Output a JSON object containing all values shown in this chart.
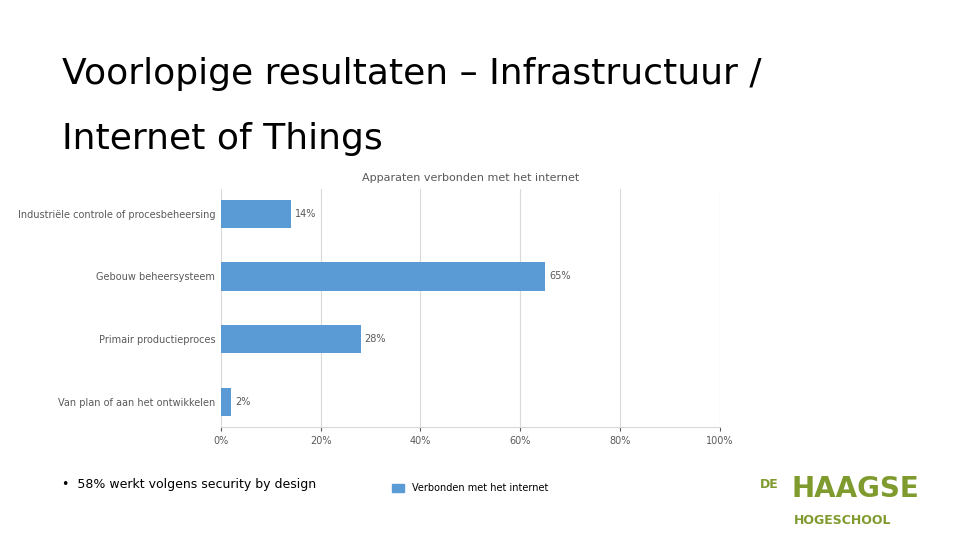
{
  "title_line1": "Voorlopige resultaten – Infrastructuur /",
  "title_line2": "Internet of Things",
  "chart_title": "Apparaten verbonden met het internet",
  "categories": [
    "Industriële controle of procesbeheersing",
    "Gebouw beheersysteem",
    "Primair productieproces",
    "Van plan of aan het ontwikkelen"
  ],
  "values": [
    14,
    65,
    28,
    2
  ],
  "bar_color": "#5B9BD5",
  "legend_label": "Verbonden met het internet",
  "legend_color": "#5B9BD5",
  "bullet_text": "58% werkt volgens security by design",
  "bg_color": "#FFFFFF",
  "title_color": "#000000",
  "chart_title_color": "#595959",
  "label_color": "#595959",
  "tick_color": "#595959",
  "grid_color": "#D9D9D9",
  "xlim": [
    0,
    100
  ],
  "xticks": [
    0,
    20,
    40,
    60,
    80,
    100
  ],
  "xtick_labels": [
    "0%",
    "20%",
    "40%",
    "60%",
    "80%",
    "100%"
  ],
  "haagse_color": "#7F9B2E",
  "title_fontsize": 26,
  "chart_title_fontsize": 8,
  "bar_label_fontsize": 7,
  "tick_fontsize": 7,
  "legend_fontsize": 7,
  "bullet_fontsize": 9
}
